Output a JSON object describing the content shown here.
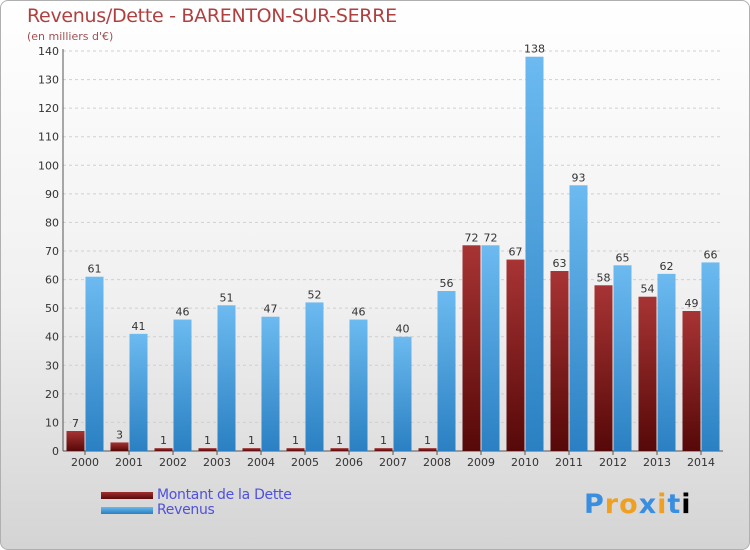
{
  "chart_data": {
    "type": "bar",
    "title": "Revenus/Dette - BARENTON-SUR-SERRE",
    "subtitle": "(en milliers d'€)",
    "categories": [
      "2000",
      "2001",
      "2002",
      "2003",
      "2004",
      "2005",
      "2006",
      "2007",
      "2008",
      "2009",
      "2010",
      "2011",
      "2012",
      "2013",
      "2014"
    ],
    "series": [
      {
        "name": "Montant de la Dette",
        "color": "#7a1a1a",
        "values": [
          7,
          3,
          1,
          1,
          1,
          1,
          1,
          1,
          1,
          72,
          67,
          63,
          58,
          54,
          49
        ]
      },
      {
        "name": "Revenus",
        "color": "#3d9be0",
        "values": [
          61,
          41,
          46,
          51,
          47,
          52,
          46,
          40,
          56,
          72,
          138,
          93,
          65,
          62,
          66
        ]
      }
    ],
    "ylim": [
      0,
      140
    ],
    "yticks": [
      0,
      10,
      20,
      30,
      40,
      50,
      60,
      70,
      80,
      90,
      100,
      110,
      120,
      130,
      140
    ],
    "grid": true,
    "legend": "bottom-left",
    "xlabel": "",
    "ylabel": ""
  },
  "branding": {
    "logo_letters": [
      "P",
      "r",
      "o",
      "x",
      "i",
      "t",
      "i"
    ]
  }
}
